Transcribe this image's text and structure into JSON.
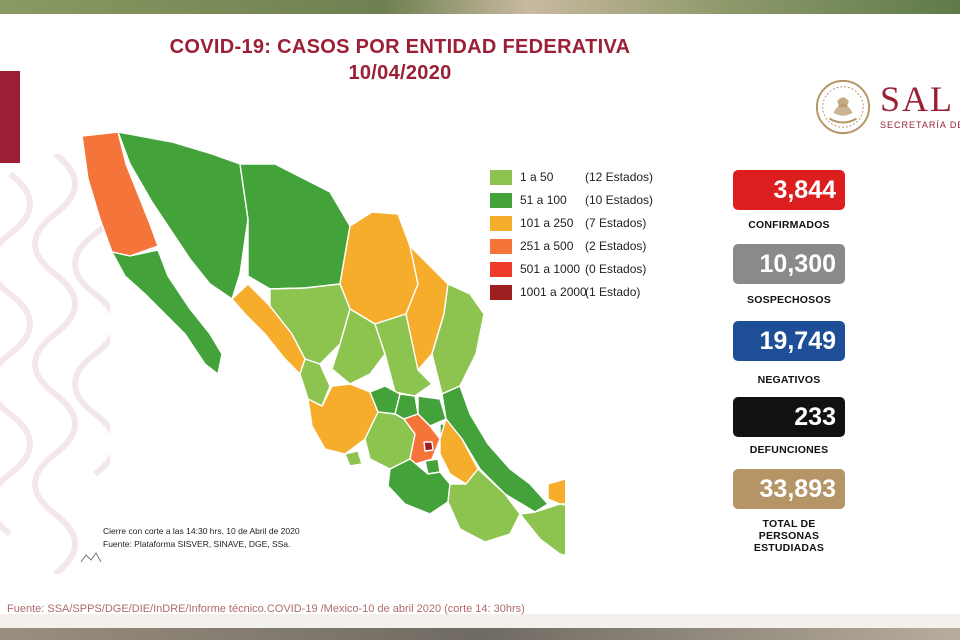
{
  "title": {
    "line1": "COVID-19: CASOS POR ENTIDAD FEDERATIVA",
    "line2": "10/04/2020"
  },
  "logo": {
    "text": "SAL",
    "subtitle": "SECRETARÍA DE"
  },
  "colors": {
    "r1_50": "#8dc450",
    "r51_100": "#43a33a",
    "r101_250": "#f6ad2c",
    "r251_500": "#f4743a",
    "r501_1000": "#ef3b2c",
    "r1001_2000": "#9e1f1f",
    "confirmados": "#dd1e1e",
    "sospechosos": "#8a8a8a",
    "negativos": "#1e4e97",
    "defunciones": "#111111",
    "total": "#b59466",
    "title": "#9b2035"
  },
  "legend": [
    {
      "range": "1 a 50",
      "count": "(12 Estados)",
      "color": "#8dc450"
    },
    {
      "range": "51 a 100",
      "count": "(10 Estados)",
      "color": "#43a33a"
    },
    {
      "range": "101 a 250",
      "count": "(7 Estados)",
      "color": "#f6ad2c"
    },
    {
      "range": "251 a 500",
      "count": "(2 Estados)",
      "color": "#f4743a"
    },
    {
      "range": "501 a 1000",
      "count": "(0 Estados)",
      "color": "#ef3b2c"
    },
    {
      "range": "1001 a 2000",
      "count": "(1 Estado)",
      "color": "#9e1f1f"
    }
  ],
  "stats": {
    "confirmados": {
      "value": "3,844",
      "label": "CONFIRMADOS"
    },
    "sospechosos": {
      "value": "10,300",
      "label": "SOSPECHOSOS"
    },
    "negativos": {
      "value": "19,749",
      "label": "NEGATIVOS"
    },
    "defunciones": {
      "value": "233",
      "label": "DEFUNCIONES"
    },
    "total": {
      "value": "33,893",
      "label_line1": "TOTAL DE",
      "label_line2": "PERSONAS",
      "label_line3": "ESTUDIADAS"
    }
  },
  "notes": {
    "cutoff": "Cierre con corte a las 14:30 hrs, 10 de Abril de 2020",
    "source_platform": "Fuente: Plataforma SISVER, SINAVE, DGE, SSa."
  },
  "footer_source": "Fuente: SSA/SPPS/DGE/DIE/InDRE/Informe técnico.COVID-19 /Mexico-10 de abril 2020 (corte 14: 30hrs)"
}
